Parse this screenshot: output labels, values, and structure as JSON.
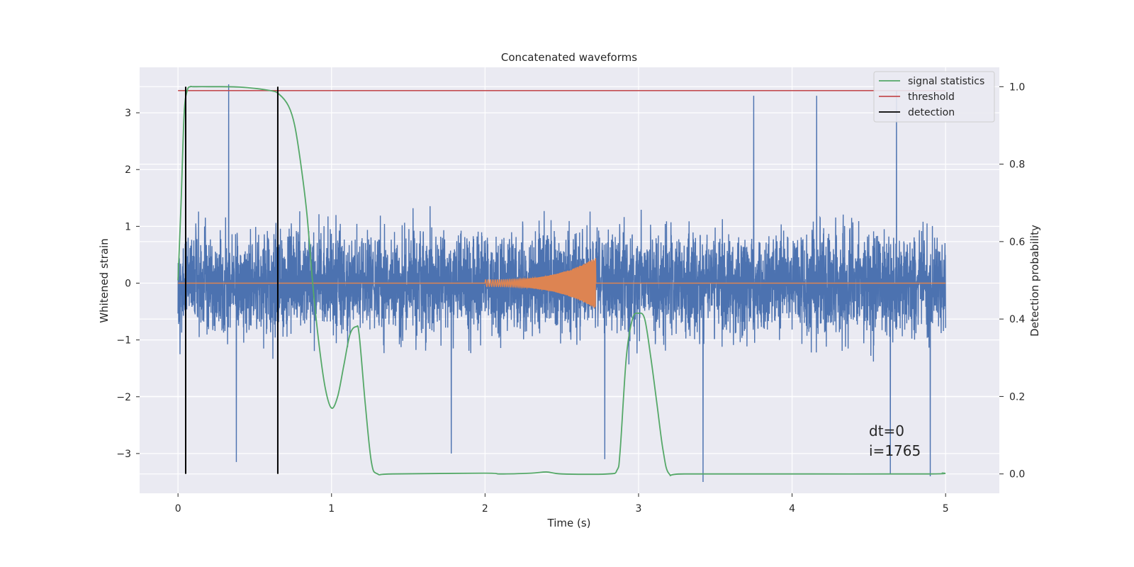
{
  "chart_data": {
    "type": "line",
    "title": "Concatenated waveforms",
    "xlabel": "Time (s)",
    "ylabel_left": "Whitened strain",
    "ylabel_right": "Detection probability",
    "xlim": [
      -0.25,
      5.35
    ],
    "ylim_left": [
      -3.7,
      3.8
    ],
    "ylim_right": [
      -0.05,
      1.05
    ],
    "x_ticks": [
      0,
      1,
      2,
      3,
      4,
      5
    ],
    "x_tick_labels": [
      "0",
      "1",
      "2",
      "3",
      "4",
      "5"
    ],
    "y_left_ticks": [
      3,
      2,
      1,
      0,
      -1,
      -2,
      -3
    ],
    "y_left_tick_labels": [
      "3",
      "2",
      "1",
      "0",
      "−1",
      "−2",
      "−3"
    ],
    "y_right_ticks": [
      1.0,
      0.8,
      0.6,
      0.4,
      0.2,
      0.0
    ],
    "y_right_tick_labels": [
      "1.0",
      "0.8",
      "0.6",
      "0.4",
      "0.2",
      "0.0"
    ],
    "grid": true,
    "legend_position": "top-right",
    "legend": [
      {
        "label": "signal statistics",
        "color": "#55a868"
      },
      {
        "label": "threshold",
        "color": "#c44e52"
      },
      {
        "label": "detection",
        "color": "#000000"
      }
    ],
    "series": [
      {
        "axis": "left",
        "color": "#4c72b0",
        "x_range": [
          0,
          5
        ],
        "approx_amplitude": 2.2,
        "peak_values": [
          {
            "x": 0.33,
            "y": 3.5
          },
          {
            "x": 0.38,
            "y": -3.15
          },
          {
            "x": 1.78,
            "y": -3.0
          },
          {
            "x": 2.78,
            "y": -3.1
          },
          {
            "x": 3.42,
            "y": -3.5
          },
          {
            "x": 3.75,
            "y": 3.3
          },
          {
            "x": 4.16,
            "y": 3.3
          },
          {
            "x": 4.64,
            "y": -3.35
          },
          {
            "x": 4.68,
            "y": 3.4
          },
          {
            "x": 4.9,
            "y": -3.4
          }
        ]
      },
      {
        "axis": "left",
        "color": "#dd8452",
        "x_range": [
          0,
          5
        ],
        "chirp_start": 2.0,
        "chirp_end": 2.72,
        "chirp_max_amplitude": 0.45
      },
      {
        "name": "signal statistics",
        "axis": "right",
        "color": "#55a868",
        "x": [
          0,
          0.02,
          0.04,
          0.06,
          0.08,
          0.1,
          0.2,
          0.4,
          0.6,
          0.66,
          0.72,
          0.76,
          0.8,
          0.84,
          0.88,
          0.92,
          0.96,
          1.0,
          1.04,
          1.08,
          1.12,
          1.16,
          1.18,
          1.22,
          1.26,
          1.3,
          1.4,
          2.0,
          2.1,
          2.3,
          2.4,
          2.5,
          2.8,
          2.86,
          2.88,
          2.92,
          2.96,
          3.0,
          3.04,
          3.08,
          3.12,
          3.16,
          3.2,
          3.3,
          4.0,
          4.9,
          4.98
        ],
        "y": [
          0.5,
          0.7,
          0.93,
          0.99,
          1.0,
          1.0,
          1.0,
          0.999,
          0.99,
          0.98,
          0.95,
          0.9,
          0.8,
          0.67,
          0.48,
          0.33,
          0.22,
          0.17,
          0.2,
          0.28,
          0.36,
          0.38,
          0.36,
          0.18,
          0.03,
          0.0,
          0.0,
          0.002,
          0.0,
          0.002,
          0.005,
          0.0,
          0.0,
          0.01,
          0.06,
          0.3,
          0.4,
          0.415,
          0.4,
          0.3,
          0.18,
          0.06,
          0.0,
          0.0,
          0.0,
          0.0,
          0.003
        ]
      },
      {
        "name": "threshold",
        "axis": "right",
        "color": "#c44e52",
        "x": [
          0,
          5
        ],
        "y": [
          0.99,
          0.99
        ]
      }
    ],
    "detections": [
      0.05,
      0.65
    ],
    "annotations": [
      "dt=0",
      "i=1765"
    ]
  },
  "colors": {
    "figure_background": "#ffffff",
    "axes_background": "#eaeaf2",
    "grid": "#ffffff",
    "strain": "#4c72b0",
    "chirp": "#dd8452",
    "statistics": "#55a868",
    "threshold": "#c44e52",
    "detection": "#000000"
  }
}
